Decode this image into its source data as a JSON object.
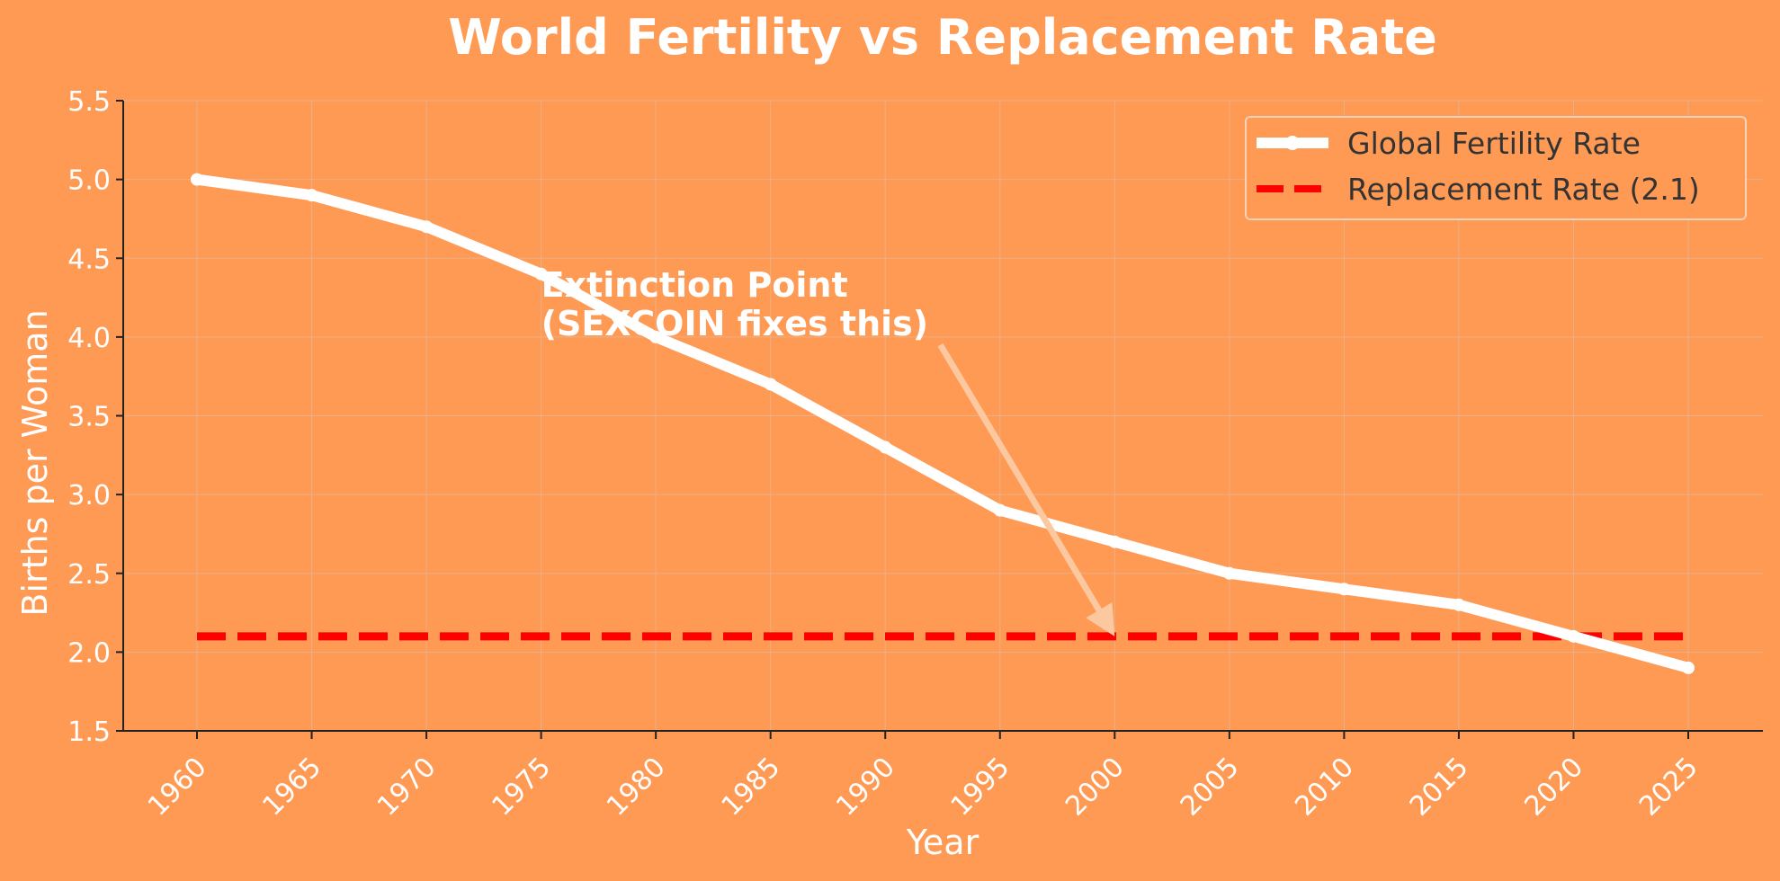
{
  "chart_data": {
    "type": "line",
    "title": "World Fertility vs Replacement Rate",
    "xlabel": "Year",
    "ylabel": "Births per Woman",
    "ylim": [
      1.5,
      5.5
    ],
    "yticks": [
      "1.5",
      "2.0",
      "2.5",
      "3.0",
      "3.5",
      "4.0",
      "4.5",
      "5.0",
      "5.5"
    ],
    "x": [
      "1960",
      "1965",
      "1970",
      "1975",
      "1980",
      "1985",
      "1990",
      "1995",
      "2000",
      "2005",
      "2010",
      "2015",
      "2020",
      "2025"
    ],
    "grid": true,
    "legend_position": "top-right",
    "series": [
      {
        "name": "Global Fertility Rate",
        "style": "solid-marker",
        "color": "#ffffff",
        "values": [
          5.0,
          4.9,
          4.7,
          4.4,
          4.0,
          3.7,
          3.3,
          2.9,
          2.7,
          2.5,
          2.4,
          2.3,
          2.1,
          1.9
        ]
      },
      {
        "name": "Replacement Rate (2.1)",
        "style": "dashed",
        "color": "#ff0000",
        "values": [
          2.1,
          2.1,
          2.1,
          2.1,
          2.1,
          2.1,
          2.1,
          2.1,
          2.1,
          2.1,
          2.1,
          2.1,
          2.1,
          2.1
        ]
      }
    ],
    "annotation": {
      "lines": [
        "Extinction Point",
        "(SEXCOIN fixes this)"
      ],
      "text_x": 1975,
      "text_y": 4.0,
      "arrow_from_x": 1992.4,
      "arrow_from_y": 3.95,
      "arrow_to_x": 2000,
      "arrow_to_y": 2.1
    }
  }
}
